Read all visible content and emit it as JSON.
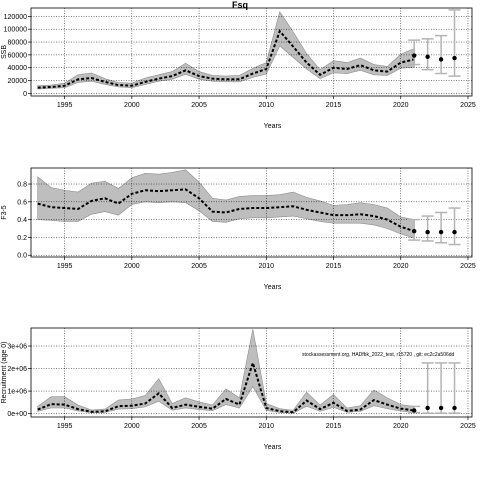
{
  "title": "Fsq",
  "annotation": "stockassessment.org, HADfbk_2022_test, r15720 , git: ec2c2a506dd",
  "colors": {
    "band": "#bebebe",
    "band_edge": "#8c8c8c",
    "line": "#000000",
    "grid": "#000000",
    "forecast": "#b3b3b3"
  },
  "chart_data": [
    {
      "type": "line",
      "id": "ssb",
      "title": "",
      "xlabel": "Years",
      "ylabel": "SSB",
      "xlim": [
        1992.5,
        2025.3
      ],
      "ylim": [
        -4000,
        133000
      ],
      "xticks": [
        1995,
        2000,
        2005,
        2010,
        2015,
        2020,
        2025
      ],
      "yticks": [
        0,
        20000,
        40000,
        60000,
        80000,
        100000,
        120000
      ],
      "ytick_labels": [
        "0",
        "20000",
        "40000",
        "60000",
        "80000",
        "100000",
        "120000"
      ],
      "grid": true,
      "x": [
        1993,
        1994,
        1995,
        1996,
        1997,
        1998,
        1999,
        2000,
        2001,
        2002,
        2003,
        2004,
        2005,
        2006,
        2007,
        2008,
        2009,
        2010,
        2011,
        2012,
        2013,
        2014,
        2015,
        2016,
        2017,
        2018,
        2019,
        2020,
        2021
      ],
      "estimate": [
        9000,
        10000,
        12000,
        22000,
        24000,
        18000,
        13000,
        12000,
        18000,
        23000,
        27000,
        36000,
        27000,
        23000,
        22000,
        22000,
        31000,
        38000,
        97000,
        73000,
        48000,
        29000,
        40000,
        38000,
        44000,
        36000,
        34000,
        48000,
        53000
      ],
      "lower": [
        7000,
        8000,
        9000,
        17000,
        19000,
        14000,
        10000,
        9000,
        14000,
        19000,
        22000,
        30000,
        22000,
        19000,
        18000,
        18000,
        25000,
        30000,
        74000,
        56000,
        38000,
        23000,
        32000,
        31000,
        36000,
        29000,
        28000,
        39000,
        41000
      ],
      "upper": [
        12000,
        13000,
        16000,
        29000,
        32000,
        23000,
        17000,
        16000,
        24000,
        29000,
        34000,
        47000,
        34000,
        28000,
        27000,
        28000,
        39000,
        48000,
        127000,
        96000,
        62000,
        37000,
        51000,
        48000,
        55000,
        45000,
        42000,
        61000,
        70000
      ],
      "forecast_x": [
        2021,
        2022,
        2023,
        2024
      ],
      "forecast_estimate": [
        59000,
        57000,
        53000,
        55000
      ],
      "forecast_lower": [
        45000,
        37000,
        31000,
        27000
      ],
      "forecast_upper": [
        83000,
        85000,
        90000,
        130000
      ]
    },
    {
      "type": "line",
      "id": "fbar",
      "title": "",
      "xlabel": "Years",
      "ylabel": "F3-5",
      "xlim": [
        1992.5,
        2025.3
      ],
      "ylim": [
        -0.02,
        0.98
      ],
      "xticks": [
        1995,
        2000,
        2005,
        2010,
        2015,
        2020,
        2025
      ],
      "yticks": [
        0.0,
        0.2,
        0.4,
        0.6,
        0.8
      ],
      "ytick_labels": [
        "0.0",
        "0.2",
        "0.4",
        "0.6",
        "0.8"
      ],
      "grid": true,
      "x": [
        1993,
        1994,
        1995,
        1996,
        1997,
        1998,
        1999,
        2000,
        2001,
        2002,
        2003,
        2004,
        2005,
        2006,
        2007,
        2008,
        2009,
        2010,
        2011,
        2012,
        2013,
        2014,
        2015,
        2016,
        2017,
        2018,
        2019,
        2020,
        2021
      ],
      "estimate": [
        0.58,
        0.54,
        0.53,
        0.52,
        0.61,
        0.64,
        0.58,
        0.69,
        0.73,
        0.72,
        0.73,
        0.74,
        0.64,
        0.49,
        0.48,
        0.52,
        0.53,
        0.53,
        0.54,
        0.55,
        0.51,
        0.48,
        0.45,
        0.45,
        0.46,
        0.44,
        0.4,
        0.32,
        0.27
      ],
      "lower": [
        0.4,
        0.39,
        0.38,
        0.38,
        0.46,
        0.49,
        0.45,
        0.57,
        0.6,
        0.59,
        0.6,
        0.59,
        0.5,
        0.38,
        0.37,
        0.41,
        0.42,
        0.42,
        0.43,
        0.44,
        0.41,
        0.38,
        0.36,
        0.36,
        0.36,
        0.34,
        0.3,
        0.24,
        0.19
      ],
      "upper": [
        0.88,
        0.76,
        0.73,
        0.71,
        0.81,
        0.83,
        0.75,
        0.87,
        0.92,
        0.91,
        0.93,
        0.96,
        0.82,
        0.64,
        0.62,
        0.66,
        0.67,
        0.67,
        0.68,
        0.71,
        0.65,
        0.61,
        0.56,
        0.57,
        0.59,
        0.57,
        0.53,
        0.43,
        0.4
      ],
      "forecast_x": [
        2021,
        2022,
        2023,
        2024
      ],
      "forecast_estimate": [
        0.27,
        0.26,
        0.26,
        0.26
      ],
      "forecast_lower": [
        0.17,
        0.16,
        0.14,
        0.12
      ],
      "forecast_upper": [
        0.4,
        0.44,
        0.48,
        0.53
      ]
    },
    {
      "type": "line",
      "id": "recruitment",
      "title": "",
      "xlabel": "Years",
      "ylabel": "Recruitment (age 0)",
      "xlim": [
        1992.5,
        2025.3
      ],
      "ylim": [
        -150000,
        3800000
      ],
      "xticks": [
        1995,
        2000,
        2005,
        2010,
        2015,
        2020,
        2025
      ],
      "yticks": [
        0,
        1000000,
        2000000,
        3000000
      ],
      "ytick_labels": [
        "0e+00",
        "1e+06",
        "2e+06",
        "3e+06"
      ],
      "grid": true,
      "x": [
        1993,
        1994,
        1995,
        1996,
        1997,
        1998,
        1999,
        2000,
        2001,
        2002,
        2003,
        2004,
        2005,
        2006,
        2007,
        2008,
        2009,
        2010,
        2011,
        2012,
        2013,
        2014,
        2015,
        2016,
        2017,
        2018,
        2019,
        2020,
        2021
      ],
      "estimate": [
        180000,
        420000,
        400000,
        200000,
        80000,
        100000,
        330000,
        350000,
        450000,
        900000,
        250000,
        400000,
        300000,
        220000,
        650000,
        400000,
        2250000,
        250000,
        110000,
        60000,
        580000,
        200000,
        480000,
        120000,
        180000,
        600000,
        400000,
        220000,
        140000
      ],
      "lower": [
        100000,
        250000,
        250000,
        120000,
        40000,
        50000,
        200000,
        220000,
        300000,
        550000,
        150000,
        250000,
        180000,
        130000,
        400000,
        250000,
        1200000,
        140000,
        50000,
        20000,
        330000,
        100000,
        280000,
        60000,
        100000,
        350000,
        220000,
        110000,
        50000
      ],
      "upper": [
        320000,
        750000,
        750000,
        380000,
        160000,
        200000,
        600000,
        650000,
        800000,
        1550000,
        450000,
        700000,
        520000,
        380000,
        1100000,
        700000,
        3750000,
        450000,
        220000,
        150000,
        950000,
        380000,
        850000,
        250000,
        350000,
        1050000,
        700000,
        400000,
        320000
      ],
      "forecast_x": [
        2021,
        2022,
        2023,
        2024
      ],
      "forecast_estimate": [
        140000,
        250000,
        250000,
        250000
      ],
      "forecast_lower": [
        50000,
        20000,
        20000,
        20000
      ],
      "forecast_upper": [
        320000,
        2250000,
        2250000,
        2250000
      ]
    }
  ]
}
